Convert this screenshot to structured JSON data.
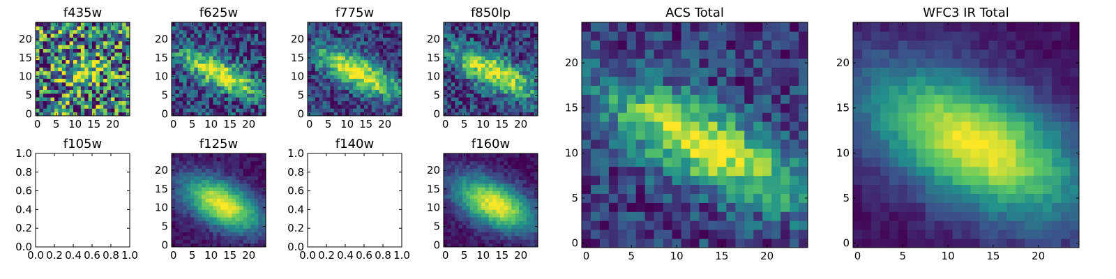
{
  "figure": {
    "colormap": "viridis",
    "image_size": [
      25,
      25
    ],
    "colormap_stops": [
      "#440154",
      "#3b528b",
      "#21918c",
      "#5ec962",
      "#fde725"
    ]
  },
  "chart_data": [
    {
      "id": "f435w",
      "type": "heatmap",
      "title": "f435w",
      "xlim": [
        -0.5,
        24.5
      ],
      "ylim": [
        -0.5,
        24.5
      ],
      "xticks": [
        0,
        5,
        10,
        15,
        20
      ],
      "yticks": [
        0,
        5,
        10,
        15,
        20
      ],
      "image": {
        "center": [
          12,
          11
        ],
        "sigma_major": 3,
        "sigma_minor": 2,
        "angle_deg": 0,
        "noise": 0.55,
        "background": 0.45,
        "peak": 1.0
      }
    },
    {
      "id": "f625w",
      "type": "heatmap",
      "title": "f625w",
      "xlim": [
        -0.5,
        24.5
      ],
      "ylim": [
        -0.5,
        24.5
      ],
      "xticks": [
        0,
        5,
        10,
        15,
        20
      ],
      "yticks": [
        0,
        5,
        10,
        15,
        20
      ],
      "image": {
        "center": [
          12,
          11
        ],
        "sigma_major": 8,
        "sigma_minor": 2.5,
        "angle_deg": -27,
        "noise": 0.28,
        "background": 0.2,
        "peak": 1.0
      }
    },
    {
      "id": "f775w",
      "type": "heatmap",
      "title": "f775w",
      "xlim": [
        -0.5,
        24.5
      ],
      "ylim": [
        -0.5,
        24.5
      ],
      "xticks": [
        0,
        5,
        10,
        15,
        20
      ],
      "yticks": [
        0,
        5,
        10,
        15,
        20
      ],
      "image": {
        "center": [
          13,
          11
        ],
        "sigma_major": 8.5,
        "sigma_minor": 2.8,
        "angle_deg": -27,
        "noise": 0.22,
        "background": 0.18,
        "peak": 1.0
      }
    },
    {
      "id": "f850lp",
      "type": "heatmap",
      "title": "f850lp",
      "xlim": [
        -0.5,
        24.5
      ],
      "ylim": [
        -0.5,
        24.5
      ],
      "xticks": [
        0,
        5,
        10,
        15,
        20
      ],
      "yticks": [
        0,
        5,
        10,
        15,
        20
      ],
      "image": {
        "center": [
          13,
          11
        ],
        "sigma_major": 8.5,
        "sigma_minor": 2.8,
        "angle_deg": -27,
        "noise": 0.25,
        "background": 0.18,
        "peak": 1.0
      }
    },
    {
      "id": "acs_total",
      "type": "heatmap",
      "title": "ACS Total",
      "xlim": [
        -0.5,
        24.5
      ],
      "ylim": [
        -0.5,
        24.5
      ],
      "xticks": [
        0,
        5,
        10,
        15,
        20
      ],
      "yticks": [
        0,
        5,
        10,
        15,
        20
      ],
      "image": {
        "center": [
          13,
          11
        ],
        "sigma_major": 8.5,
        "sigma_minor": 2.8,
        "angle_deg": -27,
        "noise": 0.2,
        "background": 0.18,
        "peak": 1.0
      }
    },
    {
      "id": "f105w",
      "type": "empty",
      "title": "f105w",
      "xlim": [
        0,
        1
      ],
      "ylim": [
        0,
        1
      ],
      "xticks": [
        "0.0",
        "0.2",
        "0.4",
        "0.6",
        "0.8",
        "1.0"
      ],
      "yticks": [
        "0.0",
        "0.2",
        "0.4",
        "0.6",
        "0.8",
        "1.0"
      ]
    },
    {
      "id": "f125w",
      "type": "heatmap",
      "title": "f125w",
      "xlim": [
        -0.5,
        24.5
      ],
      "ylim": [
        -0.5,
        24.5
      ],
      "xticks": [
        0,
        5,
        10,
        15,
        20
      ],
      "yticks": [
        0,
        5,
        10,
        15,
        20
      ],
      "image": {
        "center": [
          13,
          11
        ],
        "sigma_major": 8,
        "sigma_minor": 4,
        "angle_deg": -27,
        "noise": 0.08,
        "background": 0.05,
        "peak": 1.0
      }
    },
    {
      "id": "f140w",
      "type": "empty",
      "title": "f140w",
      "xlim": [
        0,
        1
      ],
      "ylim": [
        0,
        1
      ],
      "xticks": [
        "0.0",
        "0.2",
        "0.4",
        "0.6",
        "0.8",
        "1.0"
      ],
      "yticks": [
        "0.0",
        "0.2",
        "0.4",
        "0.6",
        "0.8",
        "1.0"
      ]
    },
    {
      "id": "f160w",
      "type": "heatmap",
      "title": "f160w",
      "xlim": [
        -0.5,
        24.5
      ],
      "ylim": [
        -0.5,
        24.5
      ],
      "xticks": [
        0,
        5,
        10,
        15,
        20
      ],
      "yticks": [
        0,
        5,
        10,
        15,
        20
      ],
      "image": {
        "center": [
          13,
          11
        ],
        "sigma_major": 8,
        "sigma_minor": 4,
        "angle_deg": -27,
        "noise": 0.08,
        "background": 0.05,
        "peak": 1.0
      }
    },
    {
      "id": "wfc3_total",
      "type": "heatmap",
      "title": "WFC3 IR Total",
      "xlim": [
        -0.5,
        24.5
      ],
      "ylim": [
        -0.5,
        24.5
      ],
      "xticks": [
        0,
        5,
        10,
        15,
        20
      ],
      "yticks": [
        0,
        5,
        10,
        15,
        20
      ],
      "image": {
        "center": [
          13,
          11
        ],
        "sigma_major": 9,
        "sigma_minor": 4.5,
        "angle_deg": -27,
        "noise": 0.06,
        "background": 0.05,
        "peak": 1.0
      }
    }
  ]
}
